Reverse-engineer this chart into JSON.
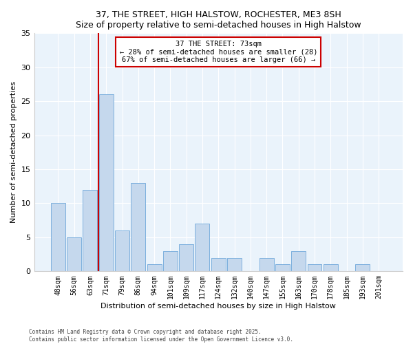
{
  "title1": "37, THE STREET, HIGH HALSTOW, ROCHESTER, ME3 8SH",
  "title2": "Size of property relative to semi-detached houses in High Halstow",
  "xlabel": "Distribution of semi-detached houses by size in High Halstow",
  "ylabel": "Number of semi-detached properties",
  "categories": [
    "48sqm",
    "56sqm",
    "63sqm",
    "71sqm",
    "79sqm",
    "86sqm",
    "94sqm",
    "101sqm",
    "109sqm",
    "117sqm",
    "124sqm",
    "132sqm",
    "140sqm",
    "147sqm",
    "155sqm",
    "163sqm",
    "170sqm",
    "178sqm",
    "185sqm",
    "193sqm",
    "201sqm"
  ],
  "values": [
    10,
    5,
    12,
    26,
    6,
    13,
    1,
    3,
    4,
    7,
    2,
    2,
    0,
    2,
    1,
    3,
    1,
    1,
    0,
    1,
    0
  ],
  "bar_color": "#c5d8ed",
  "bar_edge_color": "#5a9bd5",
  "vline_index": 3,
  "vline_color": "#cc0000",
  "annotation_title": "37 THE STREET: 73sqm",
  "annotation_line1": "← 28% of semi-detached houses are smaller (28)",
  "annotation_line2": "67% of semi-detached houses are larger (66) →",
  "annotation_box_color": "#cc0000",
  "ylim": [
    0,
    35
  ],
  "yticks": [
    0,
    5,
    10,
    15,
    20,
    25,
    30,
    35
  ],
  "footer1": "Contains HM Land Registry data © Crown copyright and database right 2025.",
  "footer2": "Contains public sector information licensed under the Open Government Licence v3.0.",
  "plot_bg_color": "#eaf3fb",
  "fig_bg_color": "#ffffff",
  "grid_color": "#ffffff"
}
